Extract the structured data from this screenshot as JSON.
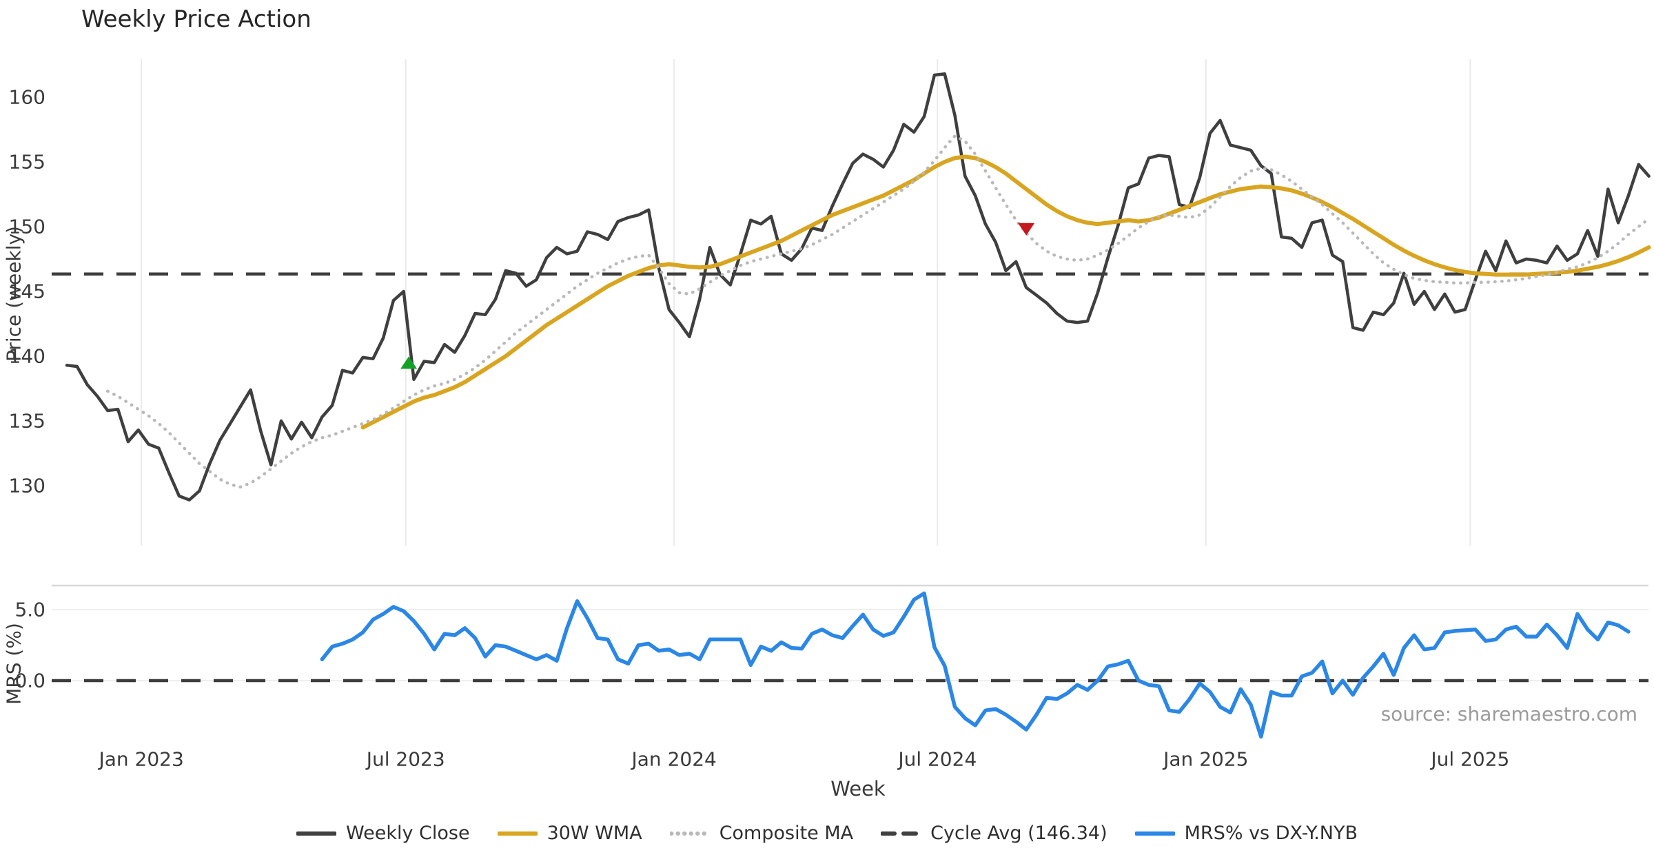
{
  "page": {
    "title": "Weekly Price Action",
    "source": "source: sharemaestro.com"
  },
  "chart_data": {
    "type": "line",
    "title": "Weekly Price Action",
    "grid": "vertical-on-price-panel, horizontal-on-mrs-panel",
    "legend_position": "bottom-center",
    "x_axis": {
      "label": "Week",
      "ticks": [
        {
          "label": "Jan 2023",
          "week": 7.3
        },
        {
          "label": "Jul 2023",
          "week": 33.2
        },
        {
          "label": "Jan 2024",
          "week": 59.5
        },
        {
          "label": "Jul 2024",
          "week": 85.3
        },
        {
          "label": "Jan 2025",
          "week": 111.6
        },
        {
          "label": "Jul 2025",
          "week": 137.5
        }
      ],
      "weeks_total": 156
    },
    "price_axis": {
      "label": "Price (weekly)",
      "ticks": [
        160,
        155,
        150,
        145,
        140,
        135,
        130
      ],
      "ylim": [
        125.5,
        163.0
      ]
    },
    "mrs_axis": {
      "label": "MRS (%)",
      "ticks": [
        5.0,
        0.0
      ],
      "ylim": [
        -4.3,
        6.7
      ]
    },
    "cycle_avg": 146.34,
    "series": [
      {
        "name": "Weekly Close",
        "panel": "price",
        "style": "solid",
        "color": "#3f3f3f",
        "width": 4.5,
        "start_week": 0,
        "values": [
          139.3,
          139.2,
          137.8,
          136.9,
          135.8,
          135.9,
          133.4,
          134.3,
          133.2,
          132.9,
          131.0,
          129.2,
          128.9,
          129.6,
          131.7,
          133.5,
          134.8,
          136.1,
          137.4,
          134.2,
          131.6,
          135.0,
          133.6,
          134.9,
          133.7,
          135.3,
          136.2,
          138.9,
          138.7,
          139.9,
          139.8,
          141.4,
          144.3,
          145.0,
          138.2,
          139.6,
          139.5,
          140.9,
          140.3,
          141.6,
          143.3,
          143.2,
          144.4,
          146.6,
          146.4,
          145.4,
          145.9,
          147.6,
          148.4,
          147.9,
          148.1,
          149.6,
          149.4,
          149.0,
          150.4,
          150.7,
          150.9,
          151.3,
          146.8,
          143.6,
          142.6,
          141.5,
          144.4,
          148.4,
          146.3,
          145.5,
          147.9,
          150.5,
          150.2,
          150.8,
          147.9,
          147.4,
          148.3,
          149.9,
          149.7,
          151.6,
          153.3,
          154.9,
          155.6,
          155.2,
          154.6,
          155.9,
          157.9,
          157.3,
          158.5,
          161.7,
          161.8,
          158.6,
          153.9,
          152.4,
          150.2,
          148.8,
          146.6,
          147.3,
          145.3,
          144.7,
          144.1,
          143.3,
          142.7,
          142.6,
          142.7,
          144.9,
          147.6,
          150.1,
          153.0,
          153.3,
          155.3,
          155.5,
          155.4,
          151.7,
          151.5,
          153.8,
          157.2,
          158.2,
          156.3,
          156.1,
          155.9,
          154.7,
          154.1,
          149.2,
          149.1,
          148.4,
          150.3,
          150.5,
          147.8,
          147.3,
          142.2,
          142.0,
          143.4,
          143.2,
          144.1,
          146.4,
          144.0,
          145.0,
          143.6,
          144.8,
          143.4,
          143.6,
          145.9,
          148.1,
          146.6,
          148.9,
          147.2,
          147.5,
          147.4,
          147.2,
          148.5,
          147.4,
          147.9,
          149.7,
          147.7,
          152.9,
          150.3,
          152.4,
          154.8,
          153.9
        ]
      },
      {
        "name": "30W WMA",
        "panel": "price",
        "style": "solid",
        "color": "#d9a520",
        "width": 6,
        "start_week": 29,
        "values": [
          134.5,
          134.9,
          135.3,
          135.7,
          136.1,
          136.5,
          136.8,
          137.0,
          137.3,
          137.6,
          138.0,
          138.5,
          139.0,
          139.5,
          140.0,
          140.6,
          141.2,
          141.8,
          142.4,
          142.9,
          143.4,
          143.9,
          144.4,
          144.9,
          145.4,
          145.8,
          146.2,
          146.5,
          146.8,
          147.0,
          147.1,
          147.0,
          146.9,
          146.85,
          146.9,
          147.1,
          147.4,
          147.7,
          148.0,
          148.3,
          148.6,
          148.9,
          149.3,
          149.7,
          150.1,
          150.5,
          150.9,
          151.2,
          151.5,
          151.8,
          152.1,
          152.4,
          152.8,
          153.2,
          153.6,
          154.1,
          154.6,
          155.0,
          155.3,
          155.4,
          155.3,
          155.0,
          154.6,
          154.1,
          153.5,
          152.9,
          152.3,
          151.7,
          151.2,
          150.8,
          150.5,
          150.3,
          150.2,
          150.3,
          150.4,
          150.5,
          150.4,
          150.5,
          150.7,
          151.0,
          151.3,
          151.6,
          151.9,
          152.2,
          152.5,
          152.7,
          152.9,
          153.0,
          153.1,
          153.05,
          152.95,
          152.8,
          152.55,
          152.25,
          151.9,
          151.5,
          151.05,
          150.6,
          150.1,
          149.6,
          149.1,
          148.6,
          148.15,
          147.75,
          147.4,
          147.1,
          146.85,
          146.65,
          146.5,
          146.4,
          146.35,
          146.3,
          146.3,
          146.3,
          146.3,
          146.35,
          146.4,
          146.45,
          146.5,
          146.6,
          146.75,
          146.9,
          147.1,
          147.35,
          147.65,
          148.0,
          148.4
        ]
      },
      {
        "name": "Composite MA",
        "panel": "price",
        "style": "dotted",
        "color": "#b9b9b9",
        "width": 4.5,
        "start_week": 4,
        "values": [
          137.3,
          136.9,
          136.4,
          135.9,
          135.4,
          134.8,
          134.1,
          133.3,
          132.5,
          131.7,
          131.1,
          130.5,
          130.1,
          129.9,
          130.2,
          130.7,
          131.3,
          131.9,
          132.5,
          133.0,
          133.4,
          133.7,
          133.9,
          134.2,
          134.5,
          134.8,
          135.1,
          135.5,
          136.0,
          136.5,
          137.0,
          137.4,
          137.7,
          137.9,
          138.2,
          138.6,
          139.1,
          139.7,
          140.4,
          141.1,
          141.8,
          142.4,
          143.0,
          143.6,
          144.2,
          144.8,
          145.4,
          145.9,
          146.4,
          146.8,
          147.2,
          147.5,
          147.7,
          147.8,
          146.8,
          145.6,
          144.9,
          144.8,
          145.2,
          145.7,
          146.2,
          146.6,
          147.0,
          147.3,
          147.5,
          147.7,
          147.9,
          148.1,
          148.3,
          148.6,
          149.0,
          149.4,
          149.9,
          150.4,
          150.9,
          151.4,
          151.9,
          152.4,
          152.9,
          153.5,
          154.2,
          155.1,
          156.1,
          157.0,
          156.6,
          155.6,
          154.3,
          153.0,
          151.7,
          150.5,
          149.5,
          148.7,
          148.1,
          147.7,
          147.5,
          147.4,
          147.5,
          147.8,
          148.2,
          148.7,
          149.3,
          149.9,
          150.4,
          150.8,
          150.9,
          150.8,
          150.7,
          150.9,
          151.5,
          152.3,
          153.1,
          153.8,
          154.3,
          154.5,
          154.4,
          154.0,
          153.5,
          152.9,
          152.3,
          151.7,
          151.0,
          150.3,
          149.5,
          148.7,
          147.9,
          147.2,
          146.7,
          146.3,
          146.0,
          145.85,
          145.75,
          145.7,
          145.65,
          145.65,
          145.7,
          145.7,
          145.75,
          145.8,
          145.9,
          146.0,
          146.15,
          146.3,
          146.5,
          146.7,
          146.9,
          147.2,
          147.6,
          148.1,
          148.7,
          149.4,
          150.0,
          150.6
        ]
      },
      {
        "name": "MRS% vs DX-Y.NYB",
        "panel": "mrs",
        "style": "solid",
        "color": "#2b87e6",
        "width": 5.5,
        "start_week": 25,
        "values": [
          1.5,
          2.4,
          2.6,
          2.9,
          3.4,
          4.3,
          4.7,
          5.2,
          4.9,
          4.2,
          3.3,
          2.2,
          3.3,
          3.2,
          3.7,
          3.0,
          1.7,
          2.5,
          2.4,
          2.1,
          1.8,
          1.5,
          1.8,
          1.4,
          3.7,
          5.6,
          4.4,
          3.0,
          2.9,
          1.5,
          1.2,
          2.5,
          2.6,
          2.1,
          2.2,
          1.8,
          1.9,
          1.5,
          2.9,
          2.9,
          2.9,
          2.9,
          1.1,
          2.4,
          2.1,
          2.7,
          2.3,
          2.25,
          3.3,
          3.6,
          3.2,
          3.0,
          3.85,
          4.65,
          3.6,
          3.15,
          3.4,
          4.5,
          5.7,
          6.15,
          2.35,
          1.05,
          -1.85,
          -2.65,
          -3.15,
          -2.1,
          -2.0,
          -2.4,
          -2.9,
          -3.45,
          -2.4,
          -1.2,
          -1.3,
          -0.9,
          -0.3,
          -0.65,
          0.0,
          1.0,
          1.15,
          1.4,
          0.0,
          -0.3,
          -0.4,
          -2.1,
          -2.2,
          -1.3,
          -0.2,
          -0.8,
          -1.85,
          -2.25,
          -0.6,
          -1.7,
          -3.95,
          -0.8,
          -1.05,
          -1.05,
          0.3,
          0.55,
          1.35,
          -0.9,
          0.0,
          -1.0,
          0.2,
          1.0,
          1.9,
          0.4,
          2.3,
          3.2,
          2.2,
          2.3,
          3.4,
          3.5,
          3.55,
          3.6,
          2.8,
          2.9,
          3.6,
          3.8,
          3.1,
          3.1,
          3.95,
          3.2,
          2.3,
          4.7,
          3.6,
          2.9,
          4.1,
          3.9,
          3.45
        ]
      }
    ],
    "markers": [
      {
        "name": "buy-signal",
        "shape": "triangle-up",
        "color": "#12a125",
        "week": 33.5,
        "price": 139.5
      },
      {
        "name": "sell-signal",
        "shape": "triangle-down",
        "color": "#c6171f",
        "week": 94,
        "price": 149.8
      }
    ],
    "legend": [
      {
        "label": "Weekly Close",
        "color": "#3f3f3f",
        "style": "solid"
      },
      {
        "label": "30W WMA",
        "color": "#d9a520",
        "style": "solid"
      },
      {
        "label": "Composite MA",
        "color": "#b9b9b9",
        "style": "dotted"
      },
      {
        "label": "Cycle Avg (146.34)",
        "color": "#3f3f3f",
        "style": "dashed"
      },
      {
        "label": "MRS% vs DX-Y.NYB",
        "color": "#2b87e6",
        "style": "solid"
      }
    ],
    "colors": {
      "grid": "#eaeaea",
      "panel_border": "#d8d8d8",
      "tick_text": "#3a3a3a",
      "dashed_reference": "#3c3c3c",
      "source_text": "#9b9b9b"
    }
  }
}
